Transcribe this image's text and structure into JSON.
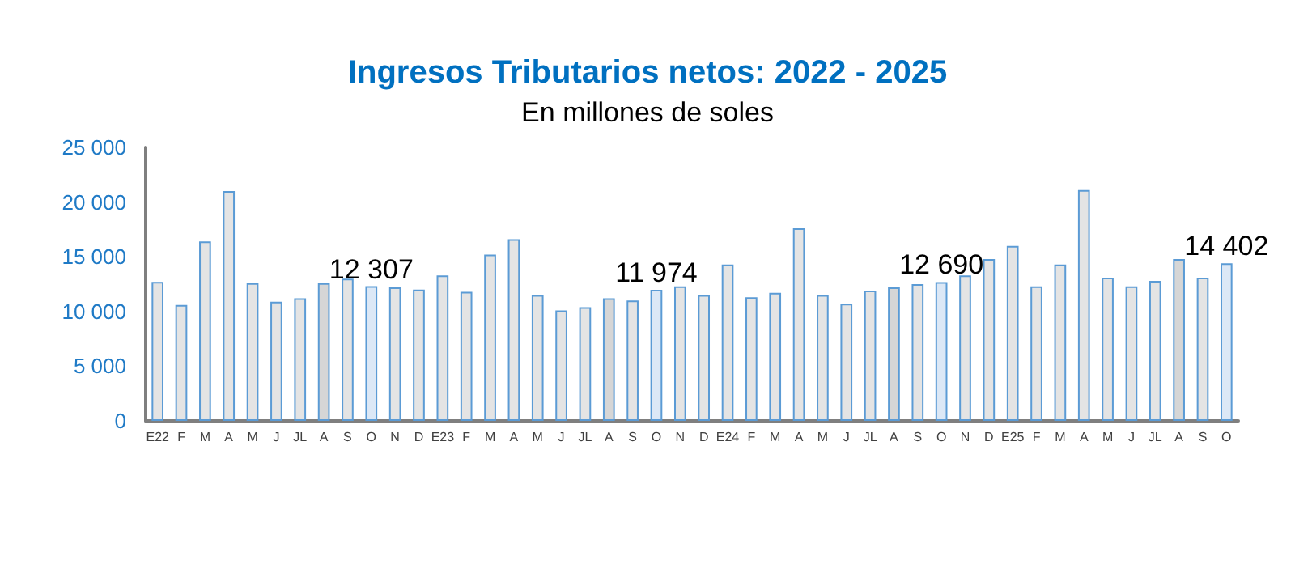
{
  "chart_data": {
    "type": "bar",
    "title": "Ingresos Tributarios netos: 2022 - 2025",
    "subtitle": "En millones de soles",
    "categories": [
      "E22",
      "F",
      "M",
      "A",
      "M",
      "J",
      "JL",
      "A",
      "S",
      "O",
      "N",
      "D",
      "E23",
      "F",
      "M",
      "A",
      "M",
      "J",
      "JL",
      "A",
      "S",
      "O",
      "N",
      "D",
      "E24",
      "F",
      "M",
      "A",
      "M",
      "J",
      "JL",
      "A",
      "S",
      "O",
      "N",
      "D",
      "E25",
      "F",
      "M",
      "A",
      "M",
      "J",
      "JL",
      "A",
      "S",
      "O"
    ],
    "values": [
      12700,
      10600,
      16400,
      21000,
      12600,
      10900,
      11200,
      12600,
      13000,
      12307,
      12200,
      12000,
      13300,
      11800,
      15200,
      16600,
      11500,
      10100,
      10400,
      11200,
      11000,
      11974,
      12300,
      11500,
      14300,
      11300,
      11700,
      17600,
      11500,
      10700,
      11900,
      12200,
      12500,
      12690,
      13300,
      14800,
      16000,
      12300,
      14300,
      21100,
      13100,
      12300,
      12800,
      14800,
      13100,
      14402
    ],
    "value_labels": [
      null,
      null,
      null,
      null,
      null,
      null,
      null,
      null,
      null,
      "12 307",
      null,
      null,
      null,
      null,
      null,
      null,
      null,
      null,
      null,
      null,
      null,
      "11 974",
      null,
      null,
      null,
      null,
      null,
      null,
      null,
      null,
      null,
      null,
      null,
      "12 690",
      null,
      null,
      null,
      null,
      null,
      null,
      null,
      null,
      null,
      null,
      null,
      "14 402"
    ],
    "colors": [
      "#e4e4e4",
      "#e4e4e4",
      "#e4e4e4",
      "#e4e4e4",
      "#e4e4e4",
      "#e4e4e4",
      "#e4e4e4",
      "#d6d6d6",
      "#e4e4e4",
      "#dce8f6",
      "#e4e4e4",
      "#e4e4e4",
      "#e4e4e4",
      "#e4e4e4",
      "#e4e4e4",
      "#e4e4e4",
      "#e4e4e4",
      "#e4e4e4",
      "#e4e4e4",
      "#d6d6d6",
      "#e4e4e4",
      "#dce8f6",
      "#e4e4e4",
      "#e4e4e4",
      "#e4e4e4",
      "#e4e4e4",
      "#e4e4e4",
      "#e4e4e4",
      "#e4e4e4",
      "#e4e4e4",
      "#e4e4e4",
      "#d6d6d6",
      "#e4e4e4",
      "#dce8f6",
      "#e4e4e4",
      "#e4e4e4",
      "#e4e4e4",
      "#e4e4e4",
      "#e4e4e4",
      "#e4e4e4",
      "#e4e4e4",
      "#e4e4e4",
      "#e4e4e4",
      "#d6d6d6",
      "#e4e4e4",
      "#dce8f6"
    ],
    "ylim": [
      0,
      25000
    ],
    "yticks": [
      0,
      {
        "value": 5000,
        "label": "5 000"
      },
      {
        "value": 10000,
        "label": "10 000"
      },
      {
        "value": 15000,
        "label": "15 000"
      },
      {
        "value": 20000,
        "label": "20 000"
      },
      {
        "value": 25000,
        "label": "25 000"
      }
    ],
    "grid": false
  }
}
